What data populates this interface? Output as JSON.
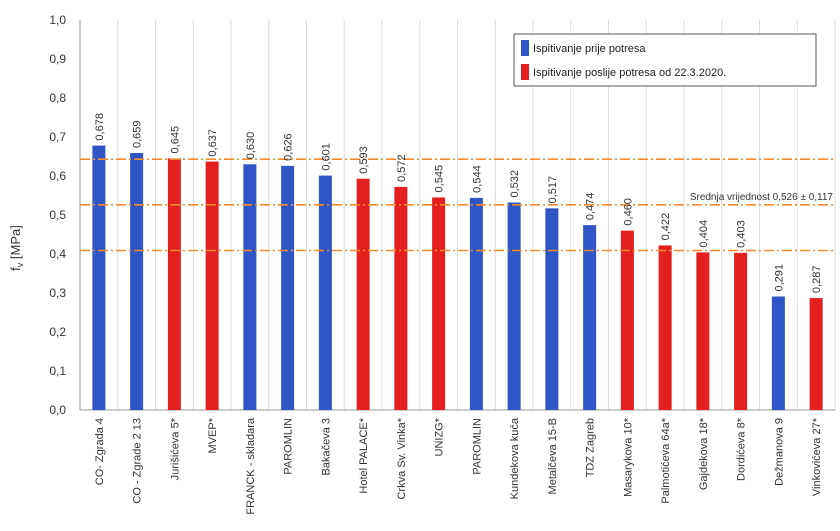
{
  "chart_data": {
    "type": "bar",
    "ylabel": "f [MPa]",
    "ylabel_main": "f",
    "ylabel_sub": "v",
    "ylabel_unit": " [MPa]",
    "ylim": [
      0,
      1.0
    ],
    "yticks": [
      "0,0",
      "0,1",
      "0,2",
      "0,3",
      "0,4",
      "0,5",
      "0,6",
      "0,7",
      "0,8",
      "0,9",
      "1,0"
    ],
    "grid": "vertical",
    "legend_position": "top-right",
    "series_meta": [
      {
        "name": "Ispitivanje prije potresa",
        "color": "#2f56c4"
      },
      {
        "name": "Ispitivanje poslije potresa od 22.3.2020.",
        "color": "#e41f1f"
      }
    ],
    "categories": [
      "CO- Zgrada 4",
      "CO - Zgrade 2 13",
      "Jurišićeva 5*",
      "MVEP*",
      "FRANCK - skladara",
      "PAROMLIN",
      "Bakačeva 3",
      "Hotel PALACE*",
      "Crkva Sv. Vinka*",
      "UNIZG*",
      "PAROMLIN",
      "Kundekova kuća",
      "Metalčeva 15-B",
      "TDZ Zagreb",
      "Masarykova 10*",
      "Palmotićeva 64a*",
      "Gajdekova 18*",
      "Dordićeva 8*",
      "Dežmanova 9",
      "Vinkovićeva 27*"
    ],
    "values": [
      0.678,
      0.659,
      0.645,
      0.637,
      0.63,
      0.626,
      0.601,
      0.593,
      0.572,
      0.545,
      0.544,
      0.532,
      0.517,
      0.474,
      0.46,
      0.422,
      0.404,
      0.403,
      0.291,
      0.287
    ],
    "value_labels": [
      "0,678",
      "0,659",
      "0,645",
      "0,637",
      "0,630",
      "0,626",
      "0,601",
      "0,593",
      "0,572",
      "0,545",
      "0,544",
      "0,532",
      "0,517",
      "0,474",
      "0,460",
      "0,422",
      "0,404",
      "0,403",
      "0,291",
      "0,287"
    ],
    "series_index": [
      0,
      0,
      1,
      1,
      0,
      0,
      0,
      1,
      1,
      1,
      0,
      0,
      0,
      0,
      1,
      1,
      1,
      1,
      0,
      1
    ],
    "reference_lines": [
      {
        "value": 0.643,
        "style": "dash-dot"
      },
      {
        "value": 0.526,
        "style": "dash-dot",
        "label": "Srednja vrijednost 0,526 ± 0,117"
      },
      {
        "value": 0.409,
        "style": "dash-dot"
      }
    ],
    "reference_color": "#f08c2e"
  }
}
